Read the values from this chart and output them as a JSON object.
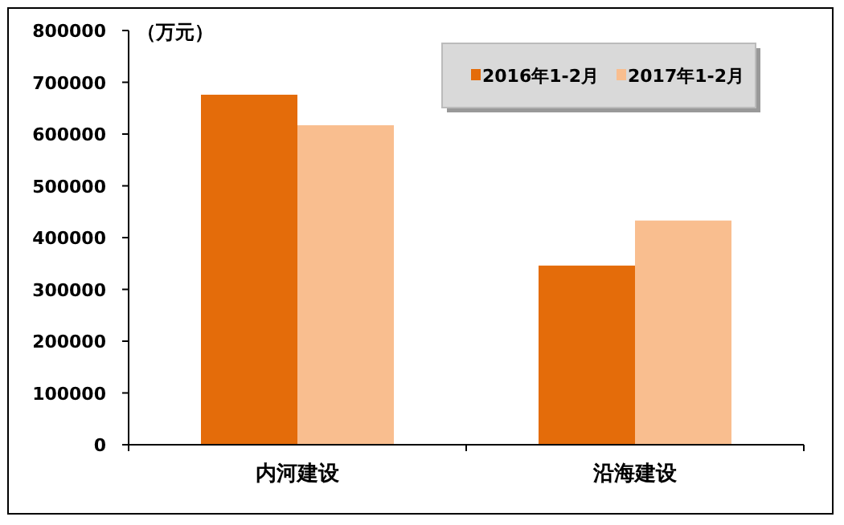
{
  "chart_data": {
    "type": "bar",
    "ylabel": "（万元）",
    "categories": [
      "内河建设",
      "沿海建设"
    ],
    "series": [
      {
        "name": "2016年1-2月",
        "color": "#e46c0a",
        "values": [
          676000,
          346000
        ]
      },
      {
        "name": "2017年1-2月",
        "color": "#f9be8f",
        "values": [
          617000,
          433000
        ]
      }
    ],
    "ylim": [
      0,
      800000
    ],
    "yticks": [
      0,
      100000,
      200000,
      300000,
      400000,
      500000,
      600000,
      700000,
      800000
    ],
    "grid": false,
    "legend": "top right"
  }
}
